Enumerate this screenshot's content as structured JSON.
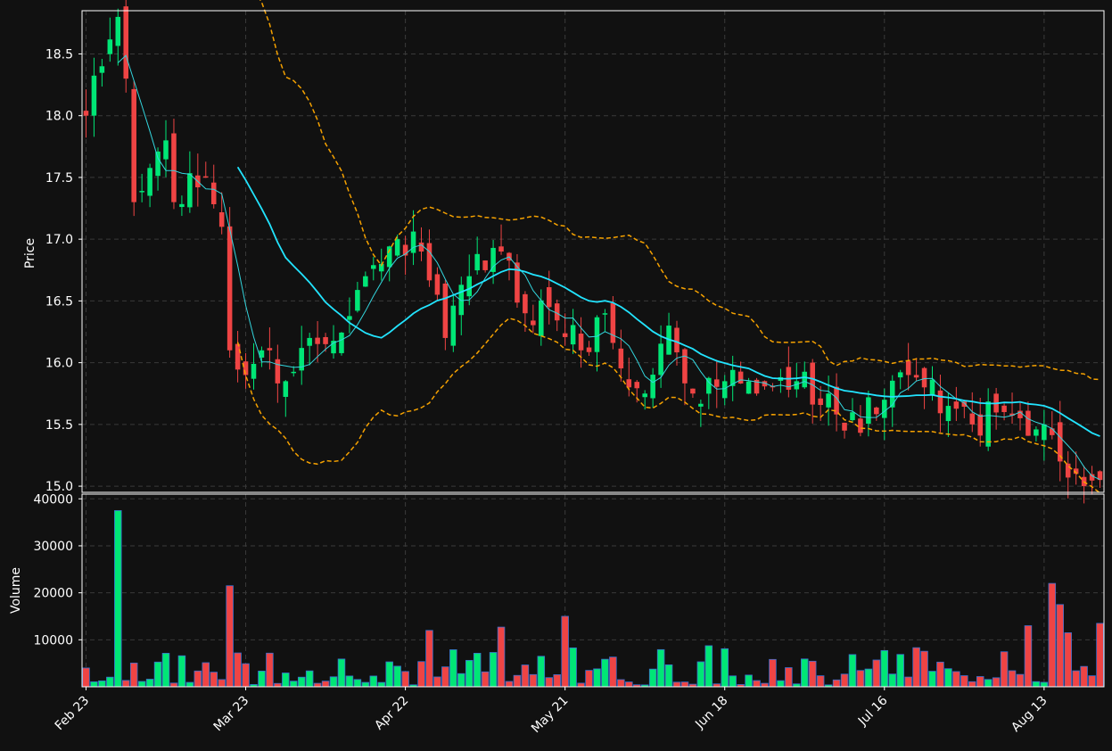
{
  "chart_data": {
    "type": "candlestick",
    "style": {
      "background": "#111111",
      "up_color": "#00e676",
      "down_color": "#ef4444",
      "ma_fast_color": "#33d6de",
      "ma_slow_color": "#22e4ff",
      "band_color": "#f5a100",
      "grid_color": "#3a3a3a",
      "axis_color": "#ffffff",
      "volume_edge_color": "#3b6fd0"
    },
    "grid": true,
    "price_panel": {
      "ylabel": "Price",
      "ylim": [
        14.95,
        18.85
      ],
      "yticks": [
        15.0,
        15.5,
        16.0,
        16.5,
        17.0,
        17.5,
        18.0,
        18.5
      ],
      "ytick_labels": [
        "15.0",
        "15.5",
        "16.0",
        "16.5",
        "17.0",
        "17.5",
        "18.0",
        "18.5"
      ]
    },
    "volume_panel": {
      "ylabel": "Volume",
      "ylim": [
        0,
        41000
      ],
      "yticks": [
        10000,
        20000,
        30000,
        40000
      ],
      "ytick_labels": [
        "10000",
        "20000",
        "30000",
        "40000"
      ]
    },
    "xaxis": {
      "n_bars": 128,
      "tick_indices": [
        0,
        20,
        40,
        60,
        80,
        100,
        120
      ],
      "tick_labels": [
        "Feb 23",
        "Mar 23",
        "Apr 22",
        "May 21",
        "Jun 18",
        "Jul 16",
        "Aug 13"
      ]
    },
    "ohlcv_keyframes": [
      {
        "i": 0,
        "c": 18.0
      },
      {
        "i": 4,
        "c": 18.8
      },
      {
        "i": 5,
        "c": 18.3
      },
      {
        "i": 6,
        "c": 17.3
      },
      {
        "i": 10,
        "c": 17.8
      },
      {
        "i": 11,
        "c": 17.3
      },
      {
        "i": 15,
        "c": 17.5
      },
      {
        "i": 17,
        "c": 17.1
      },
      {
        "i": 18,
        "c": 16.1
      },
      {
        "i": 20,
        "c": 15.9
      },
      {
        "i": 22,
        "c": 16.1
      },
      {
        "i": 25,
        "c": 15.85
      },
      {
        "i": 28,
        "c": 16.2
      },
      {
        "i": 30,
        "c": 16.15
      },
      {
        "i": 35,
        "c": 16.7
      },
      {
        "i": 37,
        "c": 16.8
      },
      {
        "i": 39,
        "c": 17.0
      },
      {
        "i": 42,
        "c": 16.9
      },
      {
        "i": 45,
        "c": 16.2
      },
      {
        "i": 48,
        "c": 16.7
      },
      {
        "i": 52,
        "c": 16.9
      },
      {
        "i": 55,
        "c": 16.4
      },
      {
        "i": 58,
        "c": 16.45
      },
      {
        "i": 62,
        "c": 16.1
      },
      {
        "i": 65,
        "c": 16.4
      },
      {
        "i": 68,
        "c": 15.8
      },
      {
        "i": 70,
        "c": 15.75
      },
      {
        "i": 73,
        "c": 16.3
      },
      {
        "i": 76,
        "c": 15.75
      },
      {
        "i": 80,
        "c": 15.85
      },
      {
        "i": 84,
        "c": 15.75
      },
      {
        "i": 86,
        "c": 15.8
      },
      {
        "i": 89,
        "c": 15.85
      },
      {
        "i": 93,
        "c": 15.75
      },
      {
        "i": 95,
        "c": 15.45
      },
      {
        "i": 100,
        "c": 15.7
      },
      {
        "i": 103,
        "c": 15.9
      },
      {
        "i": 105,
        "c": 15.8
      },
      {
        "i": 108,
        "c": 15.65
      },
      {
        "i": 111,
        "c": 15.5
      },
      {
        "i": 115,
        "c": 15.6
      },
      {
        "i": 117,
        "c": 15.55
      },
      {
        "i": 120,
        "c": 15.5
      },
      {
        "i": 122,
        "c": 15.2
      },
      {
        "i": 124,
        "c": 15.1
      },
      {
        "i": 125,
        "c": 15.0
      },
      {
        "i": 127,
        "c": 15.05
      }
    ],
    "volume_spikes": {
      "0": 4000,
      "4": 37500,
      "18": 21500,
      "43": 12000,
      "52": 12700,
      "60": 15000,
      "118": 13000,
      "121": 22000,
      "122": 17500,
      "123": 11500,
      "127": 13500
    },
    "series": [
      {
        "kind": "ma",
        "window": 5
      },
      {
        "kind": "ma",
        "window": 20
      },
      {
        "kind": "band",
        "window": 20,
        "k": 2
      }
    ]
  }
}
